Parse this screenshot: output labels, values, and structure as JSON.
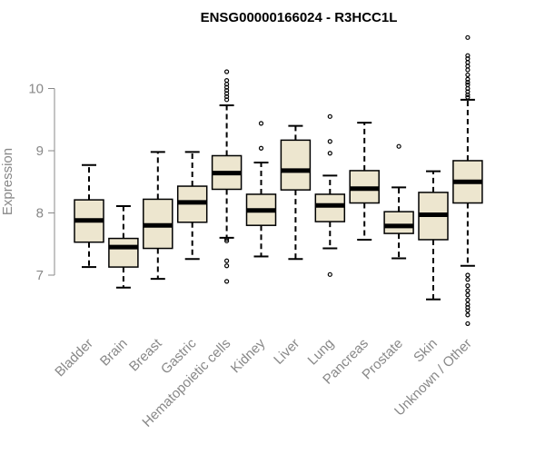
{
  "chart_data": {
    "type": "boxplot",
    "title": "ENSG00000166024 - R3HCC1L",
    "xlabel": "",
    "ylabel": "Expression",
    "ylim": [
      6.05,
      11.0
    ],
    "yticks": [
      7,
      8,
      9,
      10
    ],
    "colors": {
      "box_fill": "#ede6cf",
      "stroke": "#000000",
      "axis": "#888888"
    },
    "categories": [
      "Bladder",
      "Brain",
      "Breast",
      "Gastric",
      "Hematopoietic cells",
      "Kidney",
      "Liver",
      "Lung",
      "Pancreas",
      "Prostate",
      "Skin",
      "Unknown / Other"
    ],
    "boxes": [
      {
        "min": 7.13,
        "q1": 7.53,
        "median": 7.88,
        "q3": 8.21,
        "max": 8.77,
        "outliers": []
      },
      {
        "min": 6.8,
        "q1": 7.13,
        "median": 7.45,
        "q3": 7.59,
        "max": 8.11,
        "outliers": []
      },
      {
        "min": 6.94,
        "q1": 7.43,
        "median": 7.8,
        "q3": 8.22,
        "max": 8.98,
        "outliers": []
      },
      {
        "min": 7.26,
        "q1": 7.85,
        "median": 8.17,
        "q3": 8.43,
        "max": 8.98,
        "outliers": []
      },
      {
        "min": 7.6,
        "q1": 8.38,
        "median": 8.64,
        "q3": 8.92,
        "max": 9.73,
        "outliers": [
          10.27,
          10.13,
          10.07,
          10.02,
          9.97,
          9.92,
          9.87,
          9.82,
          7.58,
          7.55,
          7.23,
          7.15,
          6.9
        ]
      },
      {
        "min": 7.3,
        "q1": 7.8,
        "median": 8.04,
        "q3": 8.3,
        "max": 8.81,
        "outliers": [
          9.44,
          9.04
        ]
      },
      {
        "min": 7.26,
        "q1": 8.37,
        "median": 8.68,
        "q3": 9.17,
        "max": 9.4,
        "outliers": []
      },
      {
        "min": 7.43,
        "q1": 7.86,
        "median": 8.12,
        "q3": 8.3,
        "max": 8.6,
        "outliers": [
          9.55,
          9.15,
          8.96,
          7.01
        ]
      },
      {
        "min": 7.57,
        "q1": 8.16,
        "median": 8.39,
        "q3": 8.68,
        "max": 9.45,
        "outliers": []
      },
      {
        "min": 7.27,
        "q1": 7.67,
        "median": 7.79,
        "q3": 8.02,
        "max": 8.41,
        "outliers": [
          9.07
        ]
      },
      {
        "min": 6.61,
        "q1": 7.57,
        "median": 7.97,
        "q3": 8.33,
        "max": 8.67,
        "outliers": []
      },
      {
        "min": 7.15,
        "q1": 8.16,
        "median": 8.5,
        "q3": 8.84,
        "max": 9.82,
        "outliers": [
          10.82,
          10.53,
          10.48,
          10.42,
          10.36,
          10.3,
          10.22,
          10.15,
          10.1,
          10.06,
          10.0,
          9.95,
          9.9,
          9.86,
          7.0,
          6.93,
          6.83,
          6.75,
          6.68,
          6.6,
          6.53,
          6.48,
          6.43,
          6.36,
          6.22
        ]
      }
    ]
  }
}
